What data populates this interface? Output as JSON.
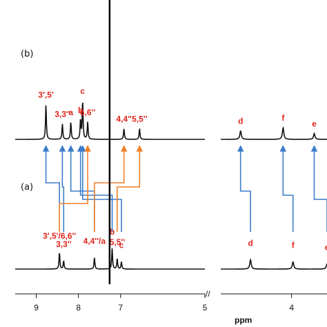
{
  "chart_data": {
    "type": "line",
    "title": "",
    "xlabel": "ppm",
    "ylabel": "",
    "x_axis": {
      "reversed": true,
      "broken": true,
      "segments": [
        {
          "range": [
            9.5,
            5.0
          ],
          "ticks": [
            "9",
            "8",
            "7",
            "5"
          ]
        },
        {
          "range": [
            5.0,
            3.5
          ],
          "ticks": [
            "4"
          ]
        }
      ]
    },
    "panels": [
      {
        "label": "(b)",
        "series": [
          {
            "peak": "3',5'",
            "ppm": 8.77,
            "height": 0.9
          },
          {
            "peak": "3,3''",
            "ppm": 8.38,
            "height": 0.4
          },
          {
            "peak": "a",
            "ppm": 8.18,
            "height": 0.45
          },
          {
            "peak": "b",
            "ppm": 7.95,
            "height": 0.5
          },
          {
            "peak": "c",
            "ppm": 7.9,
            "height": 1.0
          },
          {
            "peak": "6,6''",
            "ppm": 7.78,
            "height": 0.45
          },
          {
            "peak": "4,4''",
            "ppm": 6.92,
            "height": 0.28
          },
          {
            "peak": "5,5''",
            "ppm": 6.55,
            "height": 0.28
          },
          {
            "peak": "d",
            "ppm": 4.72,
            "height": 0.22
          },
          {
            "peak": "f",
            "ppm": 4.12,
            "height": 0.3
          },
          {
            "peak": "e",
            "ppm": 3.68,
            "height": 0.15
          }
        ]
      },
      {
        "label": "(a)",
        "series": [
          {
            "peak": "3',5'/6,6''",
            "ppm": 8.45,
            "height": 0.8
          },
          {
            "peak": "3,3''",
            "ppm": 8.35,
            "height": 0.4
          },
          {
            "peak": "4,4''/a",
            "ppm": 7.62,
            "height": 0.55
          },
          {
            "peak": "b",
            "ppm": 7.2,
            "height": 1.0
          },
          {
            "peak": "5,5''",
            "ppm": 7.08,
            "height": 0.5
          },
          {
            "peak": "c",
            "ppm": 6.98,
            "height": 0.35
          },
          {
            "peak": "d",
            "ppm": 4.58,
            "height": 0.45
          },
          {
            "peak": "f",
            "ppm": 3.98,
            "height": 0.35
          },
          {
            "peak": "e",
            "ppm": 3.5,
            "height": 0.25
          }
        ]
      }
    ],
    "correlations": [
      {
        "from": "3',5'",
        "to": "3',5'/6,6''",
        "color": "#3b7cc9"
      },
      {
        "from": "3,3''",
        "to": "3,3''",
        "color": "#3b7cc9"
      },
      {
        "from": "a",
        "to": "4,4''/a",
        "color": "#3b7cc9"
      },
      {
        "from": "b",
        "to": "b",
        "color": "#3b7cc9"
      },
      {
        "from": "c",
        "to": "c",
        "color": "#3b7cc9"
      },
      {
        "from": "6,6''",
        "to": "3',5'/6,6''",
        "color": "#f07f2a"
      },
      {
        "from": "4,4''",
        "to": "4,4''/a",
        "color": "#f07f2a"
      },
      {
        "from": "5,5''",
        "to": "5,5''",
        "color": "#f07f2a"
      },
      {
        "from": "d",
        "to": "d",
        "color": "#3b7cc9"
      },
      {
        "from": "f",
        "to": "f",
        "color": "#3b7cc9"
      },
      {
        "from": "e",
        "to": "e",
        "color": "#3b7cc9"
      }
    ],
    "colors": {
      "spectrum": "#111111",
      "label": "#e0251b",
      "blue_arrow": "#3b7cc9",
      "orange_arrow": "#f07f2a",
      "marker_line": "#000000"
    },
    "reference_marker_ppm": 7.26,
    "grid": false
  }
}
